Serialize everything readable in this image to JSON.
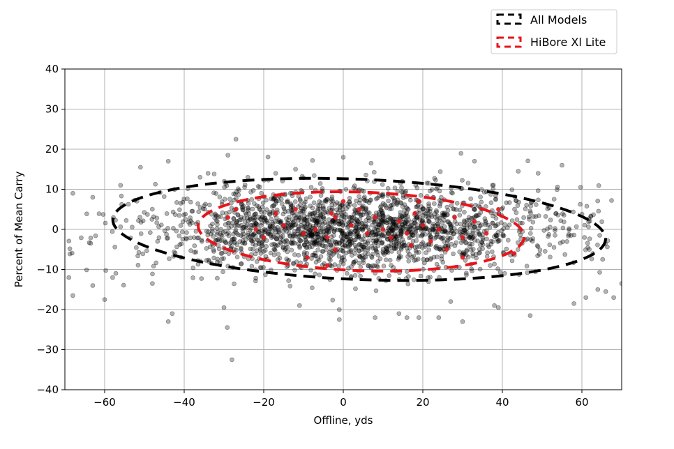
{
  "chart_data": {
    "type": "scatter",
    "xlabel": "Offline, yds",
    "ylabel": "Percent of Mean Carry",
    "xlim": [
      -70,
      70
    ],
    "ylim": [
      -40,
      40
    ],
    "xticks": [
      -60,
      -40,
      -20,
      0,
      20,
      40,
      60
    ],
    "yticks": [
      -40,
      -30,
      -20,
      -10,
      0,
      10,
      20,
      30,
      40
    ],
    "grid": true,
    "legend_position": "top-right, above plot",
    "series": [
      {
        "name": "All Models",
        "color": "#000000",
        "marker_alpha": 0.3,
        "ellipse": {
          "center": [
            4,
            0
          ],
          "semi_axis_x": 62,
          "semi_axis_y": 12.5,
          "tilt_deg": -2.3,
          "style": "dashed"
        },
        "outliers": [
          [
            -27,
            22.5
          ],
          [
            -29,
            18.5
          ],
          [
            -28,
            -32.5
          ],
          [
            -30,
            -19.5
          ],
          [
            -44,
            17
          ],
          [
            -51,
            15.5
          ],
          [
            -68,
            9
          ],
          [
            -68,
            -16.5
          ],
          [
            -69,
            -12
          ],
          [
            -60,
            -17.5
          ],
          [
            -63,
            -14
          ],
          [
            -44,
            -23
          ],
          [
            -43,
            -21
          ],
          [
            -11,
            -19
          ],
          [
            -1,
            -22.5
          ],
          [
            -1,
            -20
          ],
          [
            8,
            -22
          ],
          [
            14,
            -21
          ],
          [
            16,
            -22
          ],
          [
            19,
            -22
          ],
          [
            24,
            -22
          ],
          [
            30,
            -23
          ],
          [
            47,
            -21.5
          ],
          [
            58,
            -18.5
          ],
          [
            61,
            -17
          ],
          [
            64,
            -15
          ],
          [
            66,
            -15.5
          ],
          [
            68,
            -17
          ],
          [
            70,
            -13.5
          ],
          [
            55,
            16
          ],
          [
            44,
            14.5
          ],
          [
            49,
            14
          ],
          [
            33,
            17
          ],
          [
            0,
            18
          ],
          [
            7,
            16.5
          ],
          [
            -12,
            15
          ],
          [
            -34,
            14
          ],
          [
            -36,
            13
          ],
          [
            -48,
            -13.5
          ],
          [
            -58,
            -12
          ],
          [
            39,
            -19.5
          ],
          [
            38,
            -19
          ],
          [
            27,
            -18
          ],
          [
            -17,
            14
          ],
          [
            -24,
            13
          ],
          [
            -56,
            11
          ],
          [
            -63,
            8
          ]
        ],
        "cloud": {
          "n": 2100,
          "x_mean": 3,
          "x_sd": 26,
          "y_mean": 0,
          "y_sd": 5.2,
          "seed": 7
        }
      },
      {
        "name": "HiBore Xl Lite",
        "color": "#e8141a",
        "ellipse": {
          "center": [
            4.5,
            -0.5
          ],
          "semi_axis_x": 41,
          "semi_axis_y": 9.8,
          "tilt_deg": -2.0,
          "style": "dashed"
        },
        "points": [
          [
            -27,
            5
          ],
          [
            -22,
            0
          ],
          [
            -20,
            -2
          ],
          [
            -17,
            4
          ],
          [
            -15,
            1
          ],
          [
            -12,
            5
          ],
          [
            -10,
            -1
          ],
          [
            -7,
            0
          ],
          [
            -4,
            -2
          ],
          [
            -2,
            3
          ],
          [
            0,
            7
          ],
          [
            2,
            1
          ],
          [
            4,
            5
          ],
          [
            6,
            -1
          ],
          [
            8,
            3
          ],
          [
            10,
            0
          ],
          [
            12,
            -2
          ],
          [
            14,
            2
          ],
          [
            16,
            -1
          ],
          [
            18,
            4
          ],
          [
            20,
            1
          ],
          [
            22,
            -3
          ],
          [
            24,
            0
          ],
          [
            26,
            -5
          ],
          [
            28,
            3
          ],
          [
            30,
            -2
          ],
          [
            33,
            2
          ],
          [
            36,
            -1
          ],
          [
            39,
            5
          ],
          [
            -29,
            3
          ],
          [
            -4,
            -9
          ],
          [
            -9,
            -7
          ],
          [
            -3,
            4
          ],
          [
            19,
            7
          ],
          [
            17,
            -4
          ],
          [
            30,
            -7
          ],
          [
            43,
            -6
          ],
          [
            -2,
            -5
          ]
        ]
      }
    ]
  }
}
